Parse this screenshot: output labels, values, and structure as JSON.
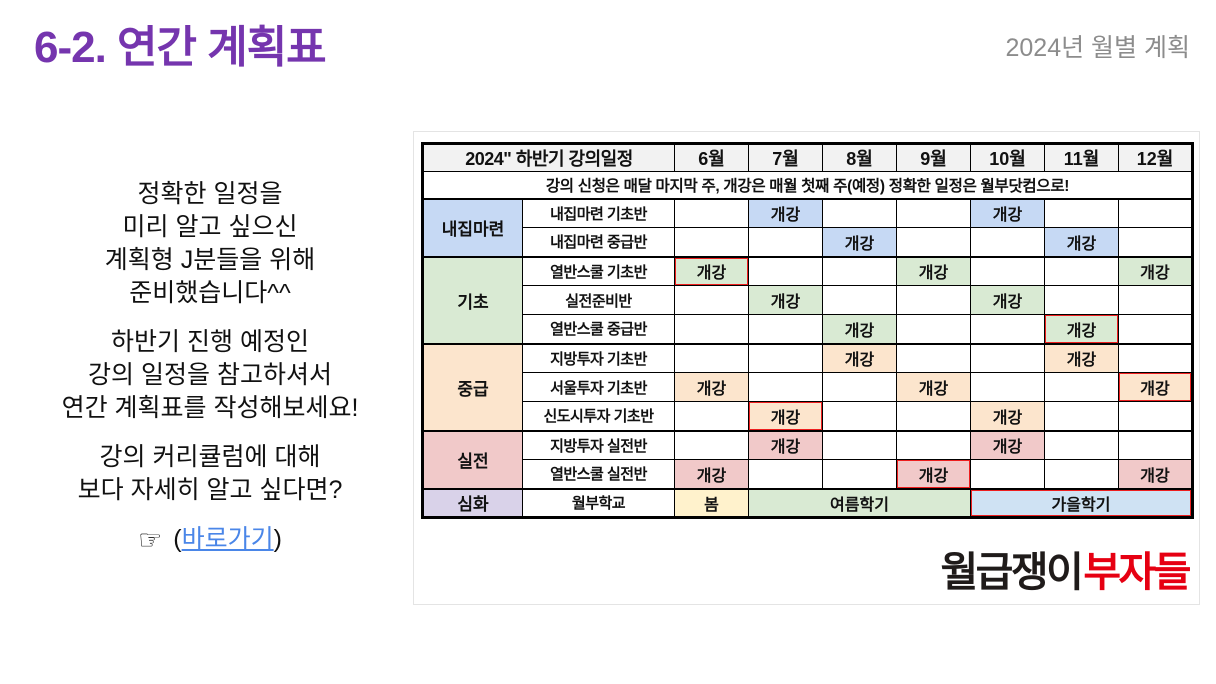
{
  "slide": {
    "title": "6-2. 연간 계획표",
    "subtitle": "2024년 월별 계획",
    "paragraphs": [
      [
        "정확한 일정을",
        "미리 알고 싶으신",
        "계획형 J분들을 위해",
        "준비했습니다^^"
      ],
      [
        "하반기 진행 예정인",
        "강의 일정을 참고하셔서",
        "연간 계획표를 작성해보세요!"
      ],
      [
        "강의 커리큘럼에 대해",
        "보다 자세히 알고 싶다면?"
      ]
    ],
    "link": {
      "hand": "☞",
      "prefix": "(",
      "label": "바로가기",
      "suffix": ")"
    }
  },
  "table": {
    "title": "2024\" 하반기 강의일정",
    "months": [
      "6월",
      "7월",
      "8월",
      "9월",
      "10월",
      "11월",
      "12월"
    ],
    "notice": "강의 신청은 매달 마지막 주, 개강은 매월 첫째 주(예정) 정확한 일정은 월부닷컴으로!",
    "open_label": "개강",
    "groups": [
      {
        "name": "내집마련",
        "color": "blue",
        "rows": [
          {
            "label": "내집마련 기초반",
            "open": [
              1,
              4
            ],
            "boxed": []
          },
          {
            "label": "내집마련 중급반",
            "open": [
              2,
              5
            ],
            "boxed": []
          }
        ]
      },
      {
        "name": "기초",
        "color": "green",
        "rows": [
          {
            "label": "열반스쿨 기초반",
            "open": [
              0,
              3,
              6
            ],
            "boxed": [
              0
            ]
          },
          {
            "label": "실전준비반",
            "open": [
              1,
              4
            ],
            "boxed": []
          },
          {
            "label": "열반스쿨 중급반",
            "open": [
              2,
              5
            ],
            "boxed": [
              5
            ]
          }
        ]
      },
      {
        "name": "중급",
        "color": "orange",
        "rows": [
          {
            "label": "지방투자 기초반",
            "open": [
              2,
              5
            ],
            "boxed": []
          },
          {
            "label": "서울투자 기초반",
            "open": [
              0,
              3,
              6
            ],
            "boxed": [
              6
            ]
          },
          {
            "label": "신도시투자 기초반",
            "open": [
              1,
              4
            ],
            "boxed": [
              1
            ]
          }
        ]
      },
      {
        "name": "실전",
        "color": "pink",
        "rows": [
          {
            "label": "지방투자 실전반",
            "open": [
              1,
              4
            ],
            "boxed": []
          },
          {
            "label": "열반스쿨 실전반",
            "open": [
              0,
              3,
              6
            ],
            "boxed": [
              3
            ]
          }
        ]
      }
    ],
    "special_row": {
      "name": "심화",
      "color": "purple",
      "class_label": "월부학교",
      "terms": [
        {
          "label": "봄",
          "span": 1,
          "color": "yellow",
          "boxed": false
        },
        {
          "label": "여름학기",
          "span": 3,
          "color": "green",
          "boxed": false
        },
        {
          "label": "가을학기",
          "span": 3,
          "color": "autumn",
          "boxed": true
        }
      ]
    }
  },
  "logo": {
    "black": "월급쟁이",
    "red": "부자들"
  },
  "colors": {
    "title_purple": "#7535ae",
    "subtitle_gray": "#8c8c8c",
    "link_blue": "#4a86e8",
    "highlight_red": "#ee1f1f",
    "logo_red": "#e60012",
    "group_blue": "#c6d9f4",
    "group_green": "#d9ead3",
    "group_orange": "#fce5cd",
    "group_pink": "#f1c9c9",
    "group_purple": "#d9d2e9",
    "term_yellow": "#fff2cc",
    "term_autumn": "#cfe2f3",
    "header_bg": "#f2f2f2"
  }
}
